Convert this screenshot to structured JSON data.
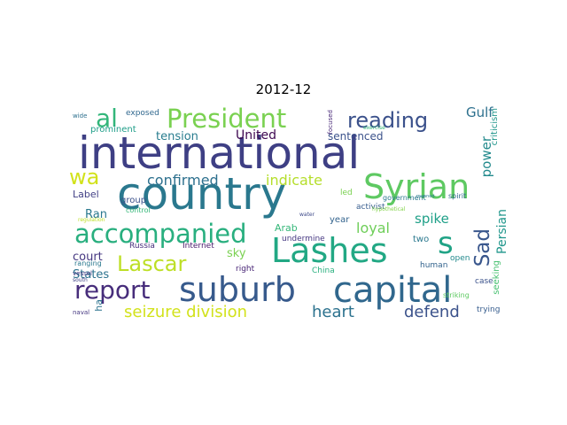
{
  "title": "2012-12",
  "words": [
    {
      "text": "international",
      "color": "#3e3f84",
      "rotate": false
    },
    {
      "text": "country",
      "color": "#2a788e",
      "rotate": false
    },
    {
      "text": "Syrian",
      "color": "#5ec962",
      "rotate": false
    },
    {
      "text": "Lashes",
      "color": "#22a884",
      "rotate": false
    },
    {
      "text": "capital",
      "color": "#30678d",
      "rotate": false
    },
    {
      "text": "suburb",
      "color": "#375a8c",
      "rotate": false
    },
    {
      "text": "accompanied",
      "color": "#29af7f",
      "rotate": false
    },
    {
      "text": "President",
      "color": "#7ad151",
      "rotate": false
    },
    {
      "text": "reading",
      "color": "#3b518b",
      "rotate": false
    },
    {
      "text": "report",
      "color": "#472d7b",
      "rotate": false
    },
    {
      "text": "Lascar",
      "color": "#bddf26",
      "rotate": false
    },
    {
      "text": "al",
      "color": "#32b67a",
      "rotate": false
    },
    {
      "text": "wa",
      "color": "#d2e21b",
      "rotate": false
    },
    {
      "text": "s",
      "color": "#20a386",
      "rotate": false
    },
    {
      "text": "Sad",
      "color": "#39568c",
      "rotate": true
    },
    {
      "text": "seizure division",
      "color": "#d2e21b",
      "rotate": false
    },
    {
      "text": "heart",
      "color": "#2c728e",
      "rotate": false
    },
    {
      "text": "defend",
      "color": "#3b528b",
      "rotate": false
    },
    {
      "text": "confirmed",
      "color": "#2d708e",
      "rotate": false
    },
    {
      "text": "indicate",
      "color": "#b5de2b",
      "rotate": false
    },
    {
      "text": "loyal",
      "color": "#6ece58",
      "rotate": false
    },
    {
      "text": "tension",
      "color": "#287c8e",
      "rotate": false
    },
    {
      "text": "United",
      "color": "#3e0751",
      "rotate": false
    },
    {
      "text": "power",
      "color": "#238a8d",
      "rotate": true
    },
    {
      "text": "spike",
      "color": "#1fa088",
      "rotate": false
    },
    {
      "text": "Persian",
      "color": "#1f968b",
      "rotate": true
    },
    {
      "text": "Gulf",
      "color": "#2d708e",
      "rotate": false
    },
    {
      "text": "sentenced",
      "color": "#3b528b",
      "rotate": false
    },
    {
      "text": "court",
      "color": "#453781",
      "rotate": false
    },
    {
      "text": "States",
      "color": "#2c728e",
      "rotate": false
    },
    {
      "text": "sky",
      "color": "#7ad151",
      "rotate": false
    },
    {
      "text": "Ran",
      "color": "#2a788e",
      "rotate": false
    },
    {
      "text": "Label",
      "color": "#424086",
      "rotate": false
    },
    {
      "text": "Arab",
      "color": "#35b779",
      "rotate": false
    },
    {
      "text": "year",
      "color": "#33638d",
      "rotate": false
    },
    {
      "text": "two",
      "color": "#2a788e",
      "rotate": false
    },
    {
      "text": "group",
      "color": "#3b518b",
      "rotate": false
    },
    {
      "text": "prominent",
      "color": "#1f9e89",
      "rotate": false
    },
    {
      "text": "exposed",
      "color": "#31688e",
      "rotate": false
    },
    {
      "text": "Russia",
      "color": "#472f7d",
      "rotate": false
    },
    {
      "text": "Internet",
      "color": "#48186a",
      "rotate": false
    },
    {
      "text": "undermine",
      "color": "#453781",
      "rotate": false
    },
    {
      "text": "right",
      "color": "#482576",
      "rotate": false
    },
    {
      "text": "China",
      "color": "#2ab07f",
      "rotate": false
    },
    {
      "text": "human",
      "color": "#33638d",
      "rotate": false
    },
    {
      "text": "open",
      "color": "#238a8d",
      "rotate": false
    },
    {
      "text": "activist",
      "color": "#365c8d",
      "rotate": false
    },
    {
      "text": "government",
      "color": "#2a788e",
      "rotate": false
    },
    {
      "text": "spirit",
      "color": "#31688e",
      "rotate": false
    },
    {
      "text": "criticism",
      "color": "#1f968b",
      "rotate": true
    },
    {
      "text": "seeking",
      "color": "#46c06f",
      "rotate": true
    },
    {
      "text": "case",
      "color": "#3b528b",
      "rotate": false
    },
    {
      "text": "trying",
      "color": "#365c8d",
      "rotate": false
    },
    {
      "text": "striking",
      "color": "#5ec962",
      "rotate": false
    },
    {
      "text": "led",
      "color": "#7ad151",
      "rotate": false
    },
    {
      "text": "control",
      "color": "#35b779",
      "rotate": false
    },
    {
      "text": "ranging",
      "color": "#2a788e",
      "rotate": false
    },
    {
      "text": "vessel",
      "color": "#443983",
      "rotate": false
    },
    {
      "text": "south",
      "color": "#414487",
      "rotate": false
    },
    {
      "text": "naval",
      "color": "#453781",
      "rotate": false
    },
    {
      "text": "ha",
      "color": "#2c728e",
      "rotate": true
    },
    {
      "text": "wide",
      "color": "#2d708e",
      "rotate": false
    },
    {
      "text": "focused",
      "color": "#482878",
      "rotate": true
    },
    {
      "text": "exercise",
      "color": "#35b779",
      "rotate": false
    },
    {
      "text": "regulation",
      "color": "#bddf26",
      "rotate": false
    },
    {
      "text": "hypothetical",
      "color": "#84d44b",
      "rotate": false
    },
    {
      "text": "water",
      "color": "#3e4a89",
      "rotate": false
    },
    {
      "text": "manned",
      "color": "#287c8e",
      "rotate": false
    }
  ]
}
